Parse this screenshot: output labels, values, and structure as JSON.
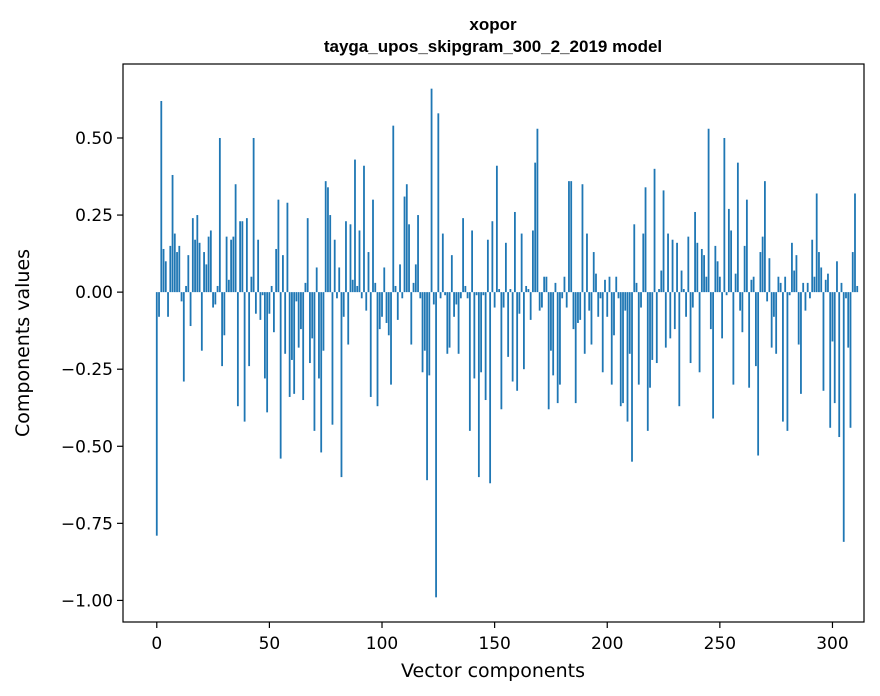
{
  "chart_data": {
    "type": "bar",
    "title_lines": [
      "xopor",
      "tayga_upos_skipgram_300_2_2019 model"
    ],
    "xlabel": "Vector components",
    "ylabel": "Components values",
    "xlim": [
      -15,
      314
    ],
    "ylim": [
      -1.07,
      0.74
    ],
    "xticks": [
      0,
      50,
      100,
      150,
      200,
      250,
      300
    ],
    "xtick_labels": [
      "0",
      "50",
      "100",
      "150",
      "200",
      "250",
      "300"
    ],
    "yticks": [
      -1.0,
      -0.75,
      -0.5,
      -0.25,
      0.0,
      0.25,
      0.5
    ],
    "ytick_labels": [
      "−1.00",
      "−0.75",
      "−0.50",
      "−0.25",
      "0.00",
      "0.25",
      "0.50"
    ],
    "grid": false,
    "bar_color": "#1f77b4",
    "values": [
      -0.79,
      -0.08,
      0.62,
      0.14,
      0.1,
      -0.08,
      0.15,
      0.38,
      0.19,
      0.13,
      0.15,
      -0.03,
      -0.29,
      0.02,
      0.12,
      -0.11,
      0.24,
      0.17,
      0.25,
      0.16,
      -0.19,
      0.13,
      0.09,
      0.18,
      0.2,
      -0.05,
      -0.04,
      0.02,
      0.5,
      -0.24,
      -0.14,
      0.18,
      0.04,
      0.17,
      0.18,
      0.35,
      -0.37,
      0.23,
      0.23,
      -0.42,
      0.24,
      -0.24,
      0.05,
      0.5,
      -0.07,
      0.17,
      -0.09,
      -0.01,
      -0.28,
      -0.39,
      -0.07,
      0.02,
      -0.13,
      0.14,
      0.3,
      -0.54,
      0.12,
      -0.2,
      0.29,
      -0.34,
      -0.22,
      -0.33,
      -0.03,
      -0.18,
      -0.12,
      -0.35,
      0.03,
      0.24,
      -0.23,
      -0.15,
      -0.45,
      0.08,
      -0.28,
      -0.52,
      -0.19,
      0.36,
      0.34,
      0.25,
      -0.43,
      0.17,
      -0.02,
      0.08,
      -0.6,
      -0.08,
      0.23,
      -0.17,
      0.22,
      0.04,
      0.43,
      0.02,
      0.2,
      -0.02,
      0.41,
      -0.06,
      0.13,
      -0.34,
      0.3,
      0.03,
      -0.37,
      -0.12,
      -0.08,
      0.08,
      -0.1,
      -0.14,
      -0.3,
      0.54,
      0.02,
      -0.09,
      0.09,
      -0.02,
      0.31,
      0.35,
      0.22,
      -0.17,
      0.03,
      0.09,
      0.25,
      -0.02,
      -0.26,
      -0.19,
      -0.61,
      -0.27,
      0.66,
      -0.04,
      -0.99,
      0.58,
      -0.02,
      0.19,
      -0.01,
      -0.2,
      -0.18,
      0.12,
      -0.08,
      -0.04,
      -0.2,
      -0.02,
      0.24,
      0.02,
      -0.02,
      -0.45,
      0.2,
      -0.28,
      -0.01,
      -0.6,
      -0.26,
      -0.01,
      -0.35,
      0.17,
      -0.62,
      0.23,
      -0.05,
      0.41,
      0.01,
      -0.38,
      -0.05,
      0.16,
      -0.21,
      0.01,
      -0.29,
      0.26,
      -0.32,
      -0.07,
      0.19,
      -0.25,
      0.02,
      0.01,
      -0.09,
      0.2,
      0.42,
      0.53,
      -0.06,
      -0.05,
      0.05,
      0.05,
      -0.38,
      -0.19,
      -0.27,
      0.03,
      -0.36,
      -0.3,
      -0.02,
      0.05,
      -0.05,
      0.36,
      0.36,
      -0.12,
      -0.36,
      -0.1,
      -0.09,
      0.35,
      -0.2,
      0.19,
      -0.06,
      -0.17,
      0.13,
      0.06,
      -0.08,
      -0.02,
      -0.26,
      0.04,
      -0.08,
      0.05,
      -0.3,
      -0.14,
      0.05,
      -0.02,
      -0.37,
      -0.36,
      -0.06,
      -0.42,
      -0.2,
      -0.55,
      0.22,
      0.03,
      -0.3,
      -0.05,
      0.19,
      0.34,
      -0.45,
      -0.31,
      -0.22,
      0.4,
      -0.23,
      0.01,
      0.07,
      0.33,
      -0.18,
      0.19,
      -0.15,
      0.17,
      -0.12,
      0.16,
      -0.37,
      0.07,
      0.01,
      -0.08,
      0.18,
      -0.23,
      -0.05,
      0.26,
      0.16,
      -0.26,
      0.14,
      0.12,
      0.05,
      0.53,
      -0.12,
      -0.41,
      0.15,
      0.1,
      0.05,
      -0.15,
      0.5,
      -0.01,
      0.27,
      0.2,
      -0.3,
      0.06,
      0.42,
      -0.06,
      -0.13,
      0.15,
      0.3,
      -0.31,
      0.04,
      0.05,
      -0.24,
      -0.53,
      0.13,
      0.18,
      0.36,
      -0.03,
      0.11,
      -0.18,
      -0.08,
      -0.2,
      0.05,
      0.03,
      -0.42,
      0.05,
      -0.45,
      -0.01,
      0.16,
      0.07,
      0.12,
      -0.17,
      -0.33,
      0.03,
      -0.06,
      0.03,
      -0.02,
      0.17,
      0.05,
      0.32,
      0.13,
      0.08,
      -0.32,
      0.04,
      0.06,
      -0.44,
      -0.16,
      -0.36,
      0.1,
      -0.47,
      0.03,
      -0.81,
      -0.02,
      -0.18,
      -0.44,
      0.13,
      0.32,
      0.02
    ]
  }
}
